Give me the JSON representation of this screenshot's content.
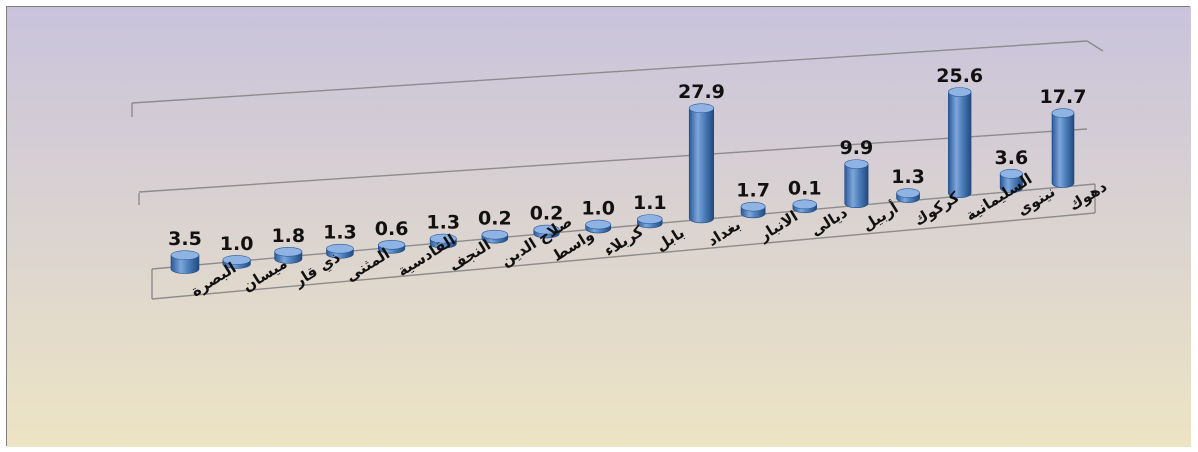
{
  "chart_data": {
    "type": "bar",
    "title": "",
    "xlabel": "",
    "ylabel": "",
    "categories": [
      "البصرة",
      "ميسان",
      "ذي قار",
      "المثنى",
      "القادسية",
      "النجف",
      "صلاح الدين",
      "واسط",
      "كربلاء",
      "بابل",
      "بغداد",
      "الانبار",
      "ديالى",
      "أربيل",
      "كركوك",
      "السليمانية",
      "نينوى",
      "دهوك"
    ],
    "values": [
      3.5,
      1.0,
      1.8,
      1.3,
      0.6,
      1.3,
      0.2,
      0.2,
      1.0,
      1.1,
      27.9,
      1.7,
      0.1,
      9.9,
      1.3,
      25.6,
      3.6,
      17.7
    ],
    "value_labels": [
      "3.5",
      "1.0",
      "1.8",
      "1.3",
      "0.6",
      "1.3",
      "0.2",
      "0.2",
      "1.0",
      "1.1",
      "27.9",
      "1.7",
      "0.1",
      "9.9",
      "1.3",
      "25.6",
      "3.6",
      "17.7"
    ],
    "ylim": [
      0,
      30
    ],
    "style": "3d-cylinder",
    "bar_color": "#4f81bd",
    "background": [
      "#c9c3dc",
      "#ede4c4"
    ],
    "grid": true,
    "legend": "none"
  }
}
